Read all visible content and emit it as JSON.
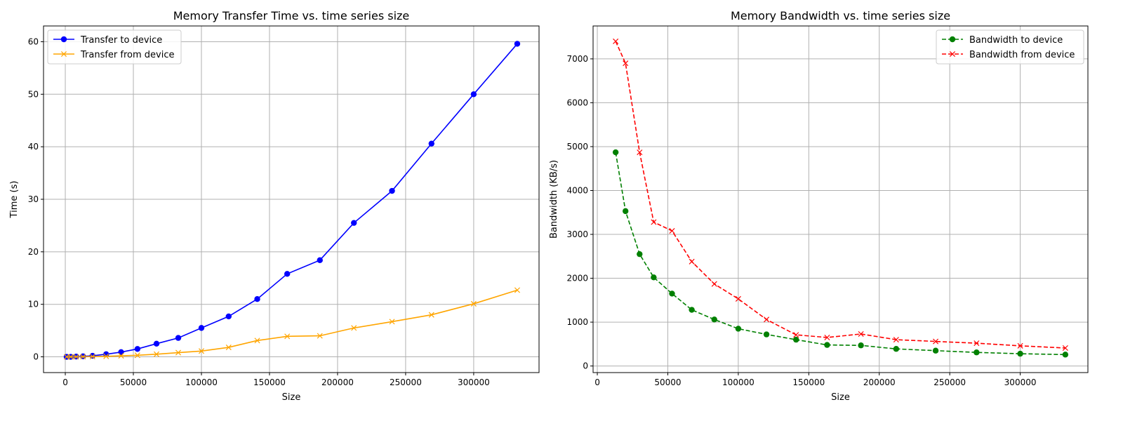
{
  "chart_data": [
    {
      "type": "line",
      "title": "Memory Transfer Time vs. time series size",
      "xlabel": "Size",
      "ylabel": "Time (s)",
      "xlim": [
        -16000,
        348000
      ],
      "ylim": [
        -3,
        63
      ],
      "xticks": [
        0,
        50000,
        100000,
        150000,
        200000,
        250000,
        300000
      ],
      "yticks": [
        0,
        10,
        20,
        30,
        40,
        50,
        60
      ],
      "grid": true,
      "legend_position": "upper-left",
      "x": [
        1000,
        4000,
        8000,
        13000,
        20000,
        30000,
        41000,
        53000,
        67000,
        83000,
        100000,
        120000,
        141000,
        163000,
        187000,
        212000,
        240000,
        269000,
        300000,
        332000
      ],
      "series": [
        {
          "name": "Transfer to device",
          "color": "#0000ff",
          "marker": "circle",
          "linestyle": "solid",
          "values": [
            0.0,
            0.0,
            0.05,
            0.1,
            0.2,
            0.5,
            0.9,
            1.5,
            2.5,
            3.6,
            5.5,
            7.7,
            11.0,
            15.8,
            18.4,
            25.5,
            31.6,
            40.6,
            50.0,
            59.6
          ]
        },
        {
          "name": "Transfer from device",
          "color": "#ffa500",
          "marker": "x",
          "linestyle": "solid",
          "values": [
            0.0,
            0.0,
            0.01,
            0.02,
            0.05,
            0.1,
            0.2,
            0.3,
            0.5,
            0.8,
            1.1,
            1.8,
            3.1,
            3.9,
            4.0,
            5.5,
            6.7,
            8.0,
            10.1,
            12.7
          ]
        }
      ]
    },
    {
      "type": "line",
      "title": "Memory Bandwidth vs. time series size",
      "xlabel": "Size",
      "ylabel": "Bandwidth (KB/s)",
      "xlim": [
        -3000,
        348000
      ],
      "ylim": [
        -150,
        7750
      ],
      "xticks": [
        0,
        50000,
        100000,
        150000,
        200000,
        250000,
        300000
      ],
      "yticks": [
        0,
        1000,
        2000,
        3000,
        4000,
        5000,
        6000,
        7000
      ],
      "grid": true,
      "legend_position": "upper-right",
      "x": [
        13000,
        20000,
        30000,
        40000,
        53000,
        67000,
        83000,
        100000,
        120000,
        141000,
        163000,
        187000,
        212000,
        240000,
        269000,
        300000,
        332000
      ],
      "series": [
        {
          "name": "Bandwidth to device",
          "color": "#008000",
          "marker": "circle",
          "linestyle": "dashed",
          "values": [
            4870,
            3530,
            2550,
            2020,
            1650,
            1280,
            1060,
            850,
            720,
            600,
            480,
            470,
            390,
            350,
            310,
            280,
            260
          ]
        },
        {
          "name": "Bandwidth from device",
          "color": "#ff0000",
          "marker": "x",
          "linestyle": "dashed",
          "values": [
            7400,
            6900,
            4870,
            3280,
            3080,
            2380,
            1870,
            1530,
            1060,
            710,
            650,
            730,
            600,
            560,
            520,
            460,
            410
          ]
        }
      ]
    }
  ]
}
